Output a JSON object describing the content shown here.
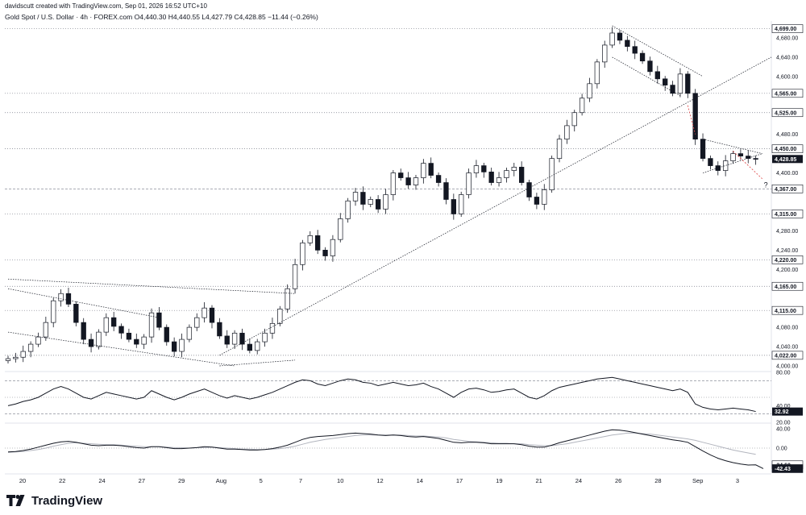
{
  "header": {
    "created_by": "davidscutt created with TradingView.com, Sep 01, 2026 16:52 UTC+10",
    "title": "Gold Spot / U.S. Dollar · 4h · FOREX.com",
    "ohlc": {
      "open": "O4,440.30",
      "high": "H4,440.55",
      "low": "L4,427.79",
      "close": "C4,428.85",
      "change": "−11.44 (−0.26%)"
    }
  },
  "brand": {
    "name": "TradingView"
  },
  "colors": {
    "up": "#131722",
    "down": "#131722",
    "grid": "#f0f3fa",
    "line": "#131722",
    "signal": "#b2b5be",
    "highlight": "#131722"
  },
  "chart_data": [
    {
      "type": "candlestick",
      "pane": "price",
      "ylim": [
        3990,
        4715
      ],
      "x_tick_labels": [
        "20",
        "22",
        "24",
        "27",
        "29",
        "Aug",
        "5",
        "7",
        "10",
        "12",
        "14",
        "17",
        "19",
        "21",
        "24",
        "26",
        "28",
        "Sep",
        "3"
      ],
      "y_tick_labels": [
        "4,680.00",
        "4,640.00",
        "4,600.00",
        "4,480.00",
        "4,400.00",
        "4,280.00",
        "4,240.00",
        "4,200.00",
        "4,080.00",
        "4,040.00",
        "4,000.00"
      ],
      "levels": [
        {
          "label": "4,699.00",
          "value": 4699,
          "style": "dotted"
        },
        {
          "label": "4,565.00",
          "value": 4565,
          "style": "dotted"
        },
        {
          "label": "4,525.00",
          "value": 4525,
          "style": "dotted"
        },
        {
          "label": "4,450.00",
          "value": 4450,
          "style": "dotted"
        },
        {
          "label": "4,367.00",
          "value": 4367,
          "style": "dashed"
        },
        {
          "label": "4,315.00",
          "value": 4315,
          "style": "dotted"
        },
        {
          "label": "4,220.00",
          "value": 4220,
          "style": "dotted"
        },
        {
          "label": "4,165.00",
          "value": 4165,
          "style": "dotted"
        },
        {
          "label": "4,115.00",
          "value": 4115,
          "style": "dotted"
        },
        {
          "label": "4,022.00",
          "value": 4022,
          "style": "dotted"
        }
      ],
      "last_price": {
        "label": "4,428.85",
        "value": 4428.85
      },
      "annotations": [
        {
          "text": "?",
          "value": 4370
        }
      ],
      "close_path": [
        4015,
        4018,
        4030,
        4045,
        4060,
        4090,
        4135,
        4150,
        4128,
        4090,
        4055,
        4040,
        4070,
        4100,
        4082,
        4068,
        4055,
        4045,
        4060,
        4110,
        4080,
        4050,
        4030,
        4055,
        4080,
        4100,
        4120,
        4090,
        4062,
        4045,
        4068,
        4045,
        4032,
        4050,
        4068,
        4088,
        4118,
        4160,
        4210,
        4255,
        4270,
        4240,
        4228,
        4262,
        4305,
        4342,
        4360,
        4335,
        4345,
        4325,
        4355,
        4400,
        4390,
        4375,
        4390,
        4420,
        4395,
        4380,
        4345,
        4315,
        4355,
        4400,
        4415,
        4402,
        4380,
        4390,
        4405,
        4412,
        4380,
        4350,
        4335,
        4365,
        4430,
        4470,
        4498,
        4525,
        4555,
        4585,
        4630,
        4665,
        4690,
        4675,
        4662,
        4648,
        4632,
        4610,
        4595,
        4582,
        4565,
        4605,
        4565,
        4470,
        4430,
        4415,
        4405,
        4425,
        4440,
        4435,
        4430,
        4428.85
      ]
    },
    {
      "type": "line",
      "pane": "rsi",
      "ylim": [
        20,
        80
      ],
      "y_tick_labels": [
        "80.00",
        "40.00",
        "20.00"
      ],
      "levels": [
        {
          "value": 70,
          "style": "dashed"
        },
        {
          "value": 50,
          "style": "dotted"
        },
        {
          "value": 30,
          "style": "dashed"
        }
      ],
      "last_value": {
        "label": "32.92",
        "value": 32.92
      },
      "series": [
        {
          "values": [
            40,
            42,
            45,
            47,
            50,
            55,
            60,
            63,
            60,
            55,
            50,
            48,
            52,
            56,
            54,
            52,
            50,
            48,
            50,
            58,
            54,
            50,
            47,
            50,
            54,
            57,
            60,
            56,
            52,
            49,
            52,
            50,
            48,
            50,
            53,
            56,
            60,
            64,
            68,
            71,
            70,
            66,
            64,
            67,
            70,
            72,
            71,
            68,
            67,
            64,
            66,
            68,
            66,
            64,
            65,
            67,
            63,
            60,
            55,
            50,
            56,
            60,
            61,
            59,
            56,
            57,
            59,
            60,
            55,
            50,
            48,
            52,
            58,
            62,
            64,
            66,
            68,
            70,
            72,
            73,
            74,
            72,
            70,
            68,
            66,
            64,
            62,
            60,
            58,
            60,
            56,
            42,
            38,
            36,
            35,
            36,
            37,
            36,
            35,
            33
          ]
        }
      ]
    },
    {
      "type": "line",
      "pane": "macd",
      "ylim": [
        -50,
        50
      ],
      "y_tick_labels": [
        "40.00",
        "0.00"
      ],
      "last_values": [
        {
          "label": "-34.60",
          "value": -34.6
        },
        {
          "label": "-42.43",
          "value": -42.43
        }
      ],
      "series": [
        {
          "values": [
            -8,
            -7,
            -5,
            -2,
            2,
            6,
            10,
            13,
            14,
            12,
            9,
            6,
            5,
            6,
            6,
            5,
            3,
            1,
            0,
            3,
            3,
            1,
            -1,
            -1,
            0,
            1,
            3,
            2,
            0,
            -2,
            -2,
            -3,
            -4,
            -4,
            -3,
            -1,
            2,
            6,
            12,
            18,
            22,
            24,
            25,
            26,
            28,
            30,
            31,
            30,
            29,
            27,
            26,
            27,
            26,
            24,
            23,
            24,
            22,
            20,
            16,
            12,
            11,
            12,
            12,
            11,
            9,
            9,
            9,
            9,
            7,
            4,
            2,
            2,
            6,
            11,
            15,
            19,
            23,
            27,
            31,
            35,
            38,
            37,
            35,
            32,
            29,
            26,
            23,
            20,
            17,
            15,
            12,
            3,
            -6,
            -14,
            -21,
            -26,
            -30,
            -33,
            -35,
            -34.6
          ]
        },
        {
          "values": [
            -9,
            -8,
            -7,
            -5,
            -3,
            0,
            4,
            7,
            10,
            11,
            10,
            9,
            8,
            7,
            7,
            6,
            5,
            4,
            3,
            3,
            3,
            2,
            1,
            1,
            0,
            1,
            1,
            2,
            1,
            0,
            -1,
            -2,
            -2,
            -3,
            -3,
            -2,
            -1,
            1,
            4,
            8,
            12,
            15,
            18,
            20,
            22,
            24,
            26,
            27,
            27,
            27,
            27,
            27,
            27,
            26,
            25,
            25,
            24,
            23,
            21,
            18,
            16,
            14,
            13,
            12,
            11,
            10,
            10,
            9,
            9,
            7,
            6,
            5,
            5,
            7,
            9,
            12,
            15,
            18,
            21,
            24,
            27,
            29,
            31,
            31,
            30,
            29,
            27,
            25,
            23,
            21,
            19,
            16,
            12,
            8,
            4,
            0,
            -4,
            -7,
            -10,
            -42.43
          ]
        }
      ]
    }
  ]
}
